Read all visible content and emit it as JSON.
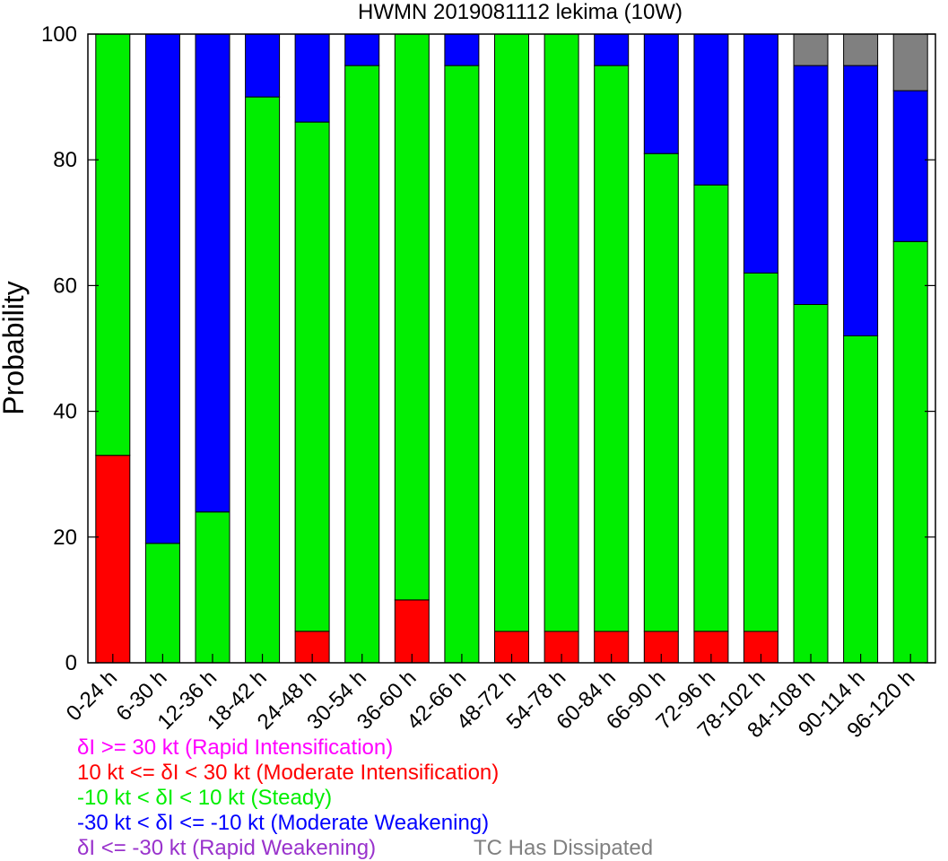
{
  "chart_data": {
    "type": "bar",
    "stacked": true,
    "title": "HWMN 2019081112 lekima (10W)",
    "xlabel": "",
    "ylabel": "Probability",
    "ylim": [
      0,
      100
    ],
    "yticks": [
      "0",
      "20",
      "40",
      "60",
      "80",
      "100"
    ],
    "grid": false,
    "categories": [
      "0-24 h",
      "6-30 h",
      "12-36 h",
      "18-42 h",
      "24-48 h",
      "30-54 h",
      "36-60 h",
      "42-66 h",
      "48-72 h",
      "54-78 h",
      "60-84 h",
      "66-90 h",
      "72-96 h",
      "78-102 h",
      "84-108 h",
      "90-114 h",
      "96-120 h"
    ],
    "series": [
      {
        "key": "ri",
        "color": "#ff00ff",
        "values": [
          0,
          0,
          0,
          0,
          0,
          0,
          0,
          0,
          0,
          0,
          0,
          0,
          0,
          0,
          0,
          0,
          0
        ]
      },
      {
        "key": "mi",
        "color": "#ff0000",
        "values": [
          33,
          0,
          0,
          0,
          5,
          0,
          10,
          0,
          5,
          5,
          5,
          5,
          5,
          5,
          0,
          0,
          0
        ]
      },
      {
        "key": "steady",
        "color": "#00ee00",
        "values": [
          67,
          19,
          24,
          90,
          81,
          95,
          90,
          95,
          95,
          95,
          90,
          76,
          71,
          57,
          57,
          52,
          67
        ]
      },
      {
        "key": "mw",
        "color": "#0000ff",
        "values": [
          0,
          81,
          76,
          10,
          14,
          5,
          0,
          5,
          0,
          0,
          5,
          19,
          24,
          38,
          38,
          43,
          24
        ]
      },
      {
        "key": "rw",
        "color": "#9932cc",
        "values": [
          0,
          0,
          0,
          0,
          0,
          0,
          0,
          0,
          0,
          0,
          0,
          0,
          0,
          0,
          0,
          0,
          0
        ]
      },
      {
        "key": "dissipated",
        "color": "#808080",
        "values": [
          0,
          0,
          0,
          0,
          0,
          0,
          0,
          0,
          0,
          0,
          0,
          0,
          0,
          0,
          5,
          5,
          9
        ]
      }
    ],
    "legend": {
      "placement": "bottom-left",
      "items": [
        {
          "text": "δI >= 30 kt (Rapid Intensification)",
          "color": "#ff00ff"
        },
        {
          "text": "10 kt <= δI < 30 kt (Moderate Intensification)",
          "color": "#ff0000"
        },
        {
          "text": "-10 kt < δI < 10 kt (Steady)",
          "color": "#00ee00"
        },
        {
          "text": "-30 kt < δI <= -10 kt (Moderate Weakening)",
          "color": "#0000ff"
        },
        {
          "text": "δI <= -30 kt (Rapid Weakening)",
          "color": "#9932cc"
        },
        {
          "text": "TC Has Dissipated",
          "color": "#808080"
        }
      ]
    }
  }
}
